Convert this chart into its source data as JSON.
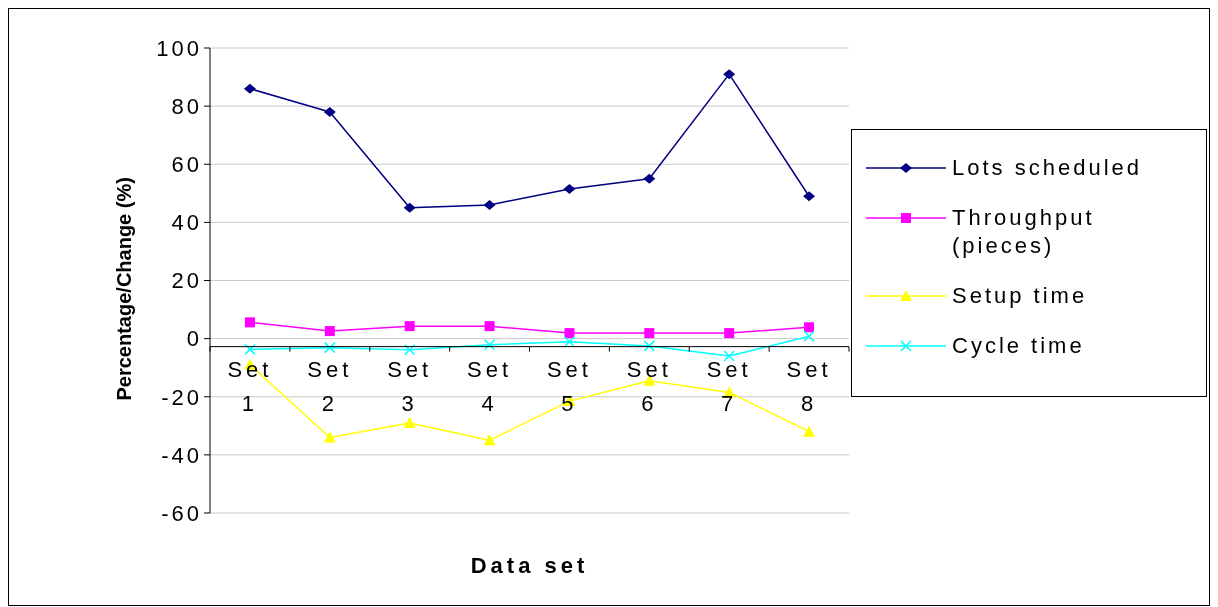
{
  "chart_data": {
    "type": "line",
    "xlabel": "Data set",
    "ylabel": "Percentage/Change (%)",
    "categories": [
      "Set 1",
      "Set 2",
      "Set 3",
      "Set 4",
      "Set 5",
      "Set 6",
      "Set 7",
      "Set 8"
    ],
    "series": [
      {
        "name": "Lots scheduled",
        "color": "#000080",
        "marker": "diamond",
        "values": [
          86,
          78,
          45,
          46,
          51.5,
          55,
          91,
          49
        ]
      },
      {
        "name": "Throughput (pieces)",
        "color": "#ff00ff",
        "marker": "square",
        "values": [
          5.6,
          2.6,
          4.3,
          4.3,
          1.9,
          1.9,
          1.9,
          3.9
        ]
      },
      {
        "name": "Setup time",
        "color": "#ffff00",
        "marker": "triangle",
        "values": [
          -9,
          -34,
          -29,
          -35,
          -21.5,
          -14.5,
          -18.5,
          -32
        ]
      },
      {
        "name": "Cycle time",
        "color": "#00ffff",
        "marker": "cross",
        "values": [
          -3.7,
          -3.1,
          -3.8,
          -2.1,
          -1.1,
          -2.5,
          -6,
          0.8
        ]
      }
    ],
    "ylim": [
      -60,
      100
    ],
    "yticks": [
      -60,
      -40,
      -20,
      0,
      20,
      40,
      60,
      80,
      100
    ],
    "grid": "y",
    "legend": "right"
  }
}
